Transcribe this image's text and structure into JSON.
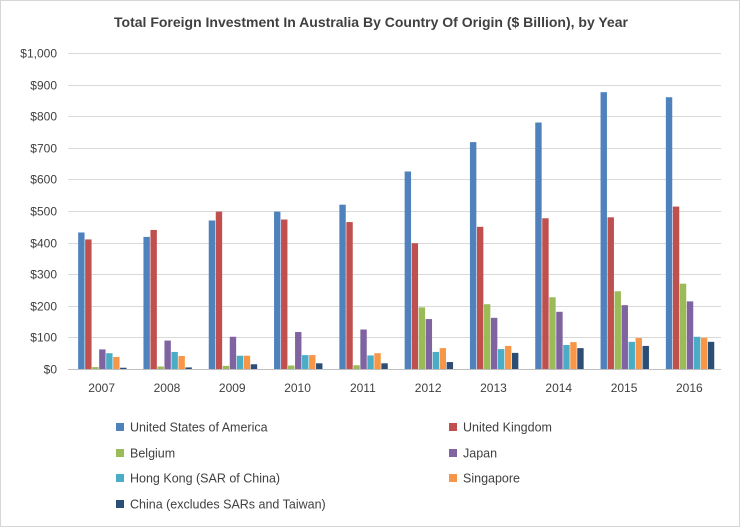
{
  "chart_data": {
    "type": "bar",
    "title": "Total Foreign Investment In Australia By Country Of Origin ($ Billion), by Year",
    "xlabel": "",
    "ylabel": "",
    "ylim": [
      0,
      1000
    ],
    "ytick_values": [
      0,
      100,
      200,
      300,
      400,
      500,
      600,
      700,
      800,
      900,
      1000
    ],
    "ytick_labels": [
      "$0",
      "$100",
      "$200",
      "$300",
      "$400",
      "$500",
      "$600",
      "$700",
      "$800",
      "$900",
      "$1,000"
    ],
    "categories": [
      "2007",
      "2008",
      "2009",
      "2010",
      "2011",
      "2012",
      "2013",
      "2014",
      "2015",
      "2016"
    ],
    "grid": true,
    "legend": "bottom",
    "series": [
      {
        "name": "United States of America",
        "color": "#4F81BD",
        "values": [
          432,
          418,
          470,
          498,
          520,
          625,
          718,
          780,
          876,
          860
        ]
      },
      {
        "name": "United Kingdom",
        "color": "#C0504D",
        "values": [
          410,
          440,
          498,
          473,
          465,
          398,
          450,
          477,
          480,
          514
        ]
      },
      {
        "name": "Belgium",
        "color": "#9BBB59",
        "values": [
          6,
          8,
          10,
          11,
          12,
          195,
          205,
          227,
          246,
          270
        ]
      },
      {
        "name": "Japan",
        "color": "#8064A2",
        "values": [
          62,
          90,
          102,
          117,
          125,
          158,
          162,
          181,
          202,
          214
        ]
      },
      {
        "name": "Hong Kong (SAR of China)",
        "color": "#4BACC6",
        "values": [
          50,
          54,
          42,
          44,
          43,
          54,
          63,
          76,
          86,
          102
        ]
      },
      {
        "name": "Singapore",
        "color": "#F79646",
        "values": [
          38,
          41,
          42,
          44,
          50,
          66,
          73,
          85,
          98,
          99
        ]
      },
      {
        "name": "China (excludes SARs and Taiwan)",
        "color": "#2C4D75",
        "values": [
          4,
          5,
          15,
          18,
          18,
          22,
          51,
          66,
          73,
          86
        ]
      }
    ]
  }
}
